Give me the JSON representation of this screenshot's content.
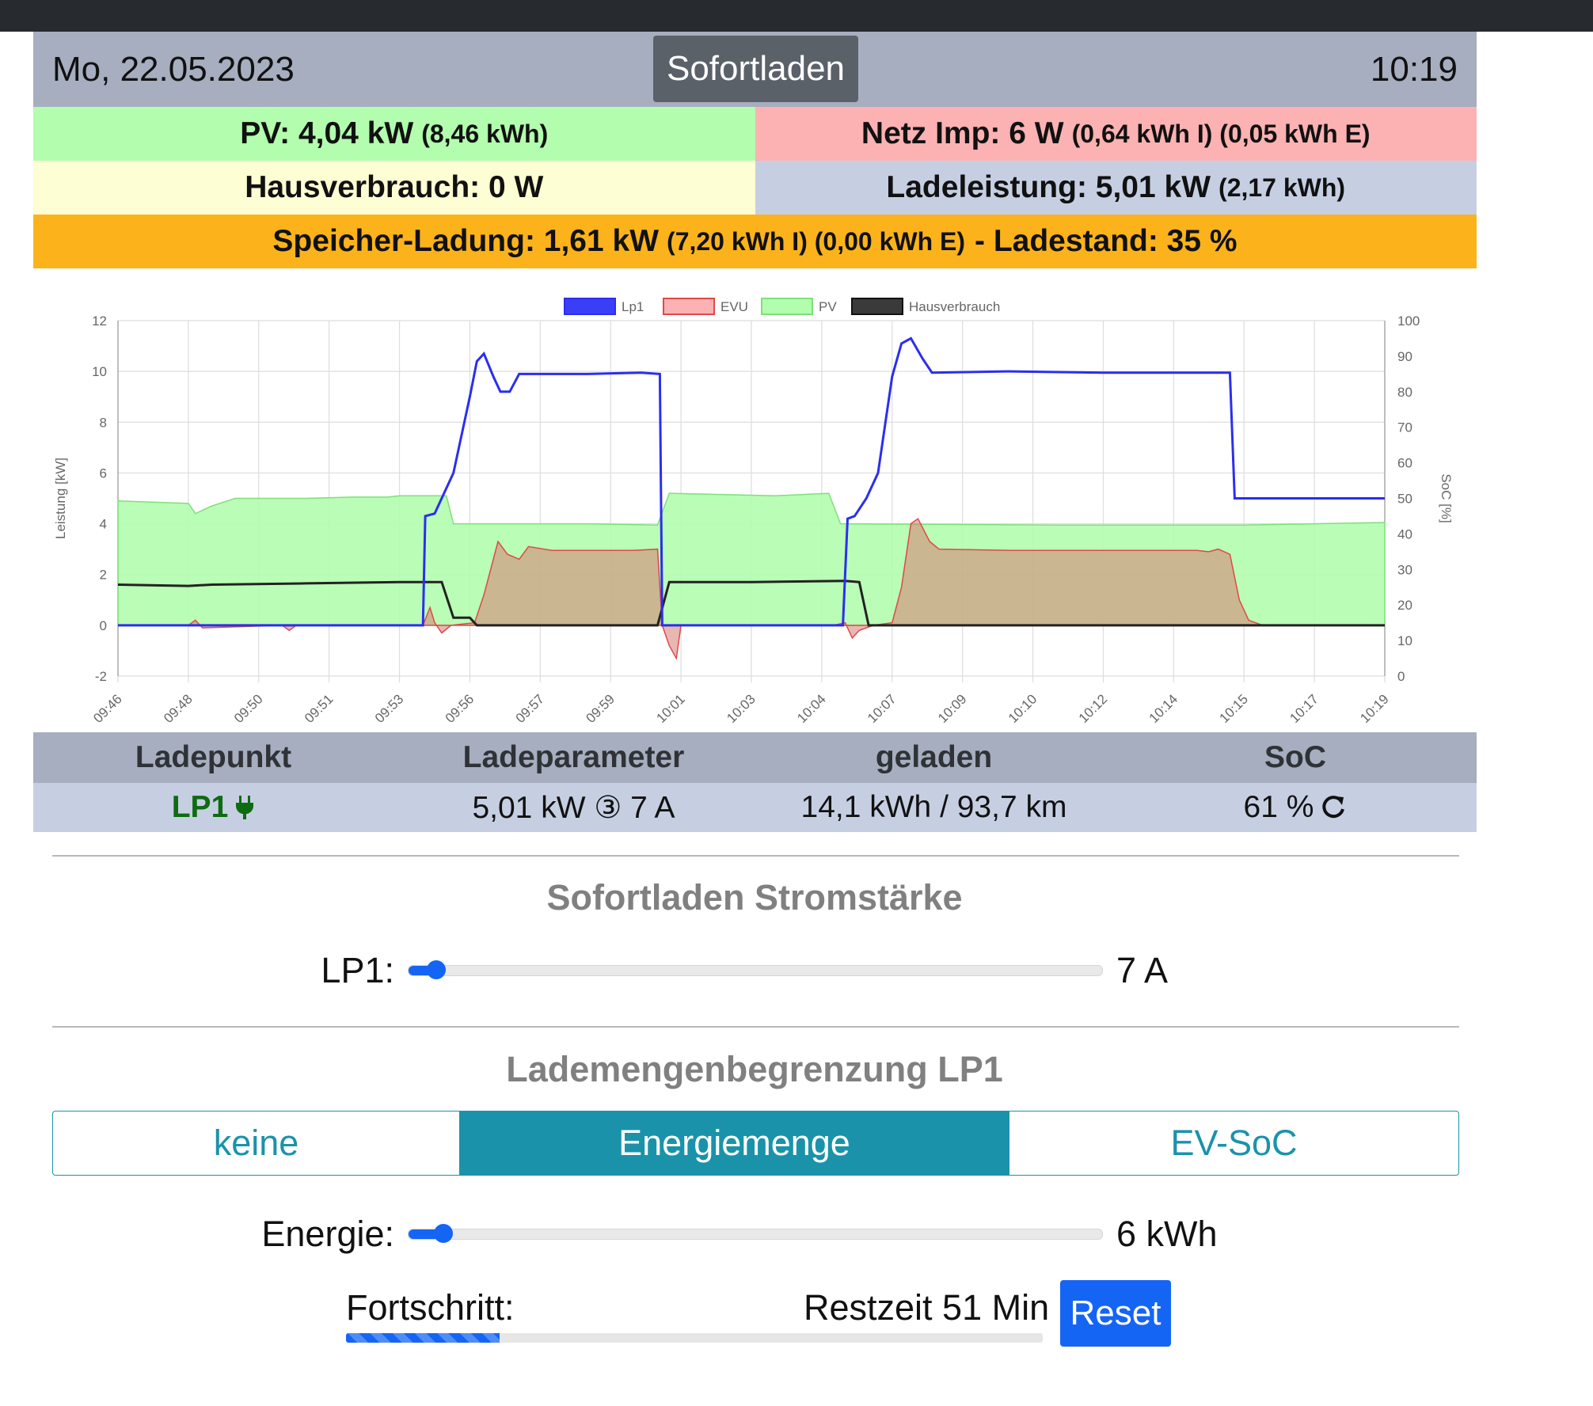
{
  "header": {
    "date": "Mo, 22.05.2023",
    "mode": "Sofortladen",
    "time": "10:19"
  },
  "status": {
    "pv_main": "PV: 4,04 kW",
    "pv_sub": "(8,46 kWh)",
    "netz_main": "Netz Imp: 6 W",
    "netz_sub": "(0,64 kWh I) (0,05 kWh E)",
    "haus_main": "Hausverbrauch: 0 W",
    "lade_main": "Ladeleistung: 5,01 kW",
    "lade_sub": "(2,17 kWh)",
    "speicher_main": "Speicher-Ladung: 1,61 kW",
    "speicher_sub": "(7,20 kWh I) (0,00 kWh E)",
    "speicher_tail": "- Ladestand: 35 %"
  },
  "colors": {
    "lp1": "#2b2ef0",
    "evu": "#e04848",
    "pv": "#b2fdae",
    "haus": "#222222",
    "accent": "#1565f5",
    "teal": "#1a93aa"
  },
  "chart_data": {
    "type": "line",
    "legend": [
      "Lp1",
      "EVU",
      "PV",
      "Hausverbrauch"
    ],
    "legend_position": "top",
    "ylabel": "Leistung [kW]",
    "y2label": "SoC [%]",
    "ylim": [
      -2,
      12
    ],
    "y2lim": [
      0,
      100
    ],
    "y_ticks": [
      "12",
      "10",
      "8",
      "6",
      "4",
      "2",
      "0",
      "-2"
    ],
    "y2_ticks": [
      "100",
      "90",
      "80",
      "70",
      "60",
      "50",
      "40",
      "30",
      "20",
      "10",
      "0"
    ],
    "x_ticks": [
      "09:46",
      "09:48",
      "09:50",
      "09:51",
      "09:53",
      "09:56",
      "09:57",
      "09:59",
      "10:01",
      "10:03",
      "10:04",
      "10:07",
      "10:09",
      "10:10",
      "10:12",
      "10:14",
      "10:15",
      "10:17",
      "10:19"
    ],
    "grid": true,
    "series": [
      {
        "name": "Lp1",
        "points": [
          [
            0,
            0
          ],
          [
            13,
            0
          ],
          [
            13.1,
            4.3
          ],
          [
            13.5,
            4.4
          ],
          [
            14.3,
            6
          ],
          [
            15,
            9
          ],
          [
            15.3,
            10.4
          ],
          [
            15.6,
            10.7
          ],
          [
            16,
            9.8
          ],
          [
            16.3,
            9.2
          ],
          [
            16.7,
            9.2
          ],
          [
            17.1,
            9.9
          ],
          [
            20,
            9.9
          ],
          [
            22.3,
            9.95
          ],
          [
            23.1,
            9.9
          ],
          [
            23.2,
            0
          ],
          [
            30.9,
            0
          ],
          [
            31.1,
            4.2
          ],
          [
            31.4,
            4.3
          ],
          [
            31.9,
            5.0
          ],
          [
            32.4,
            6.0
          ],
          [
            33.0,
            9.8
          ],
          [
            33.4,
            11.1
          ],
          [
            33.8,
            11.3
          ],
          [
            34.3,
            10.5
          ],
          [
            34.7,
            9.95
          ],
          [
            38,
            10
          ],
          [
            42,
            9.95
          ],
          [
            47.4,
            9.95
          ],
          [
            47.6,
            5.0
          ],
          [
            50,
            5.0
          ],
          [
            53,
            5.0
          ],
          [
            54,
            5.0
          ]
        ]
      },
      {
        "name": "EVU",
        "points": [
          [
            0,
            0
          ],
          [
            3,
            0
          ],
          [
            3.3,
            0.2
          ],
          [
            3.6,
            -0.1
          ],
          [
            7,
            0
          ],
          [
            7.3,
            -0.2
          ],
          [
            7.6,
            0
          ],
          [
            13,
            0
          ],
          [
            13.3,
            0.7
          ],
          [
            13.5,
            0.1
          ],
          [
            13.8,
            -0.3
          ],
          [
            14.2,
            0
          ],
          [
            15.2,
            0.1
          ],
          [
            15.6,
            1.2
          ],
          [
            16.2,
            3.3
          ],
          [
            16.6,
            2.8
          ],
          [
            17.1,
            2.6
          ],
          [
            17.5,
            3.1
          ],
          [
            18.5,
            2.95
          ],
          [
            20,
            2.95
          ],
          [
            22,
            2.95
          ],
          [
            23,
            3.0
          ],
          [
            23.2,
            0
          ],
          [
            23.5,
            -0.8
          ],
          [
            23.8,
            -1.3
          ],
          [
            24,
            0
          ],
          [
            30.5,
            0
          ],
          [
            31,
            0.1
          ],
          [
            31.3,
            -0.5
          ],
          [
            31.6,
            -0.2
          ],
          [
            32.2,
            0
          ],
          [
            33,
            0.1
          ],
          [
            33.4,
            1.5
          ],
          [
            33.8,
            4.0
          ],
          [
            34.1,
            4.2
          ],
          [
            34.6,
            3.3
          ],
          [
            35,
            3.0
          ],
          [
            38,
            2.95
          ],
          [
            42,
            2.95
          ],
          [
            46,
            2.95
          ],
          [
            46.5,
            2.9
          ],
          [
            46.9,
            3.0
          ],
          [
            47.4,
            2.8
          ],
          [
            47.8,
            1.0
          ],
          [
            48.2,
            0.2
          ],
          [
            48.8,
            0
          ],
          [
            54,
            0
          ]
        ]
      },
      {
        "name": "PV",
        "points": [
          [
            0,
            4.9
          ],
          [
            3,
            4.8
          ],
          [
            3.3,
            4.4
          ],
          [
            4,
            4.7
          ],
          [
            5,
            5.0
          ],
          [
            8,
            5.0
          ],
          [
            10,
            5.05
          ],
          [
            11.5,
            5.05
          ],
          [
            12,
            5.1
          ],
          [
            14,
            5.1
          ],
          [
            14.3,
            4.0
          ],
          [
            20,
            4.0
          ],
          [
            23,
            3.95
          ],
          [
            23.5,
            5.2
          ],
          [
            28,
            5.1
          ],
          [
            30.3,
            5.2
          ],
          [
            30.8,
            4.0
          ],
          [
            40,
            3.95
          ],
          [
            48,
            3.95
          ],
          [
            54,
            4.05
          ]
        ]
      },
      {
        "name": "Hausverbrauch",
        "points": [
          [
            0,
            1.6
          ],
          [
            3,
            1.55
          ],
          [
            4,
            1.6
          ],
          [
            8,
            1.65
          ],
          [
            12,
            1.7
          ],
          [
            13.8,
            1.7
          ],
          [
            14.3,
            0.3
          ],
          [
            15,
            0.3
          ],
          [
            15.3,
            0
          ],
          [
            23,
            0
          ],
          [
            23.5,
            1.7
          ],
          [
            27,
            1.7
          ],
          [
            31,
            1.75
          ],
          [
            31.6,
            1.7
          ],
          [
            32,
            0
          ],
          [
            54,
            0
          ]
        ]
      }
    ]
  },
  "loadpoints": {
    "headers": [
      "Ladepunkt",
      "Ladeparameter",
      "geladen",
      "SoC"
    ],
    "row": {
      "name": "LP1",
      "params": "5,01 kW ③ 7 A",
      "charged": "14,1 kWh / 93,7 km",
      "soc": "61 %"
    }
  },
  "sofortladen": {
    "title": "Sofortladen Stromstärke",
    "label": "LP1:",
    "value": "7 A",
    "fraction": 0.04
  },
  "limit": {
    "title": "Lademengenbegrenzung LP1",
    "options": [
      "keine",
      "Energiemenge",
      "EV-SoC"
    ],
    "selected": "Energiemenge",
    "energy_label": "Energie:",
    "energy_value": "6 kWh",
    "energy_fraction": 0.05,
    "progress_label": "Fortschritt:",
    "progress_value": 0.22,
    "remaining": "Restzeit 51 Min",
    "reset": "Reset"
  }
}
